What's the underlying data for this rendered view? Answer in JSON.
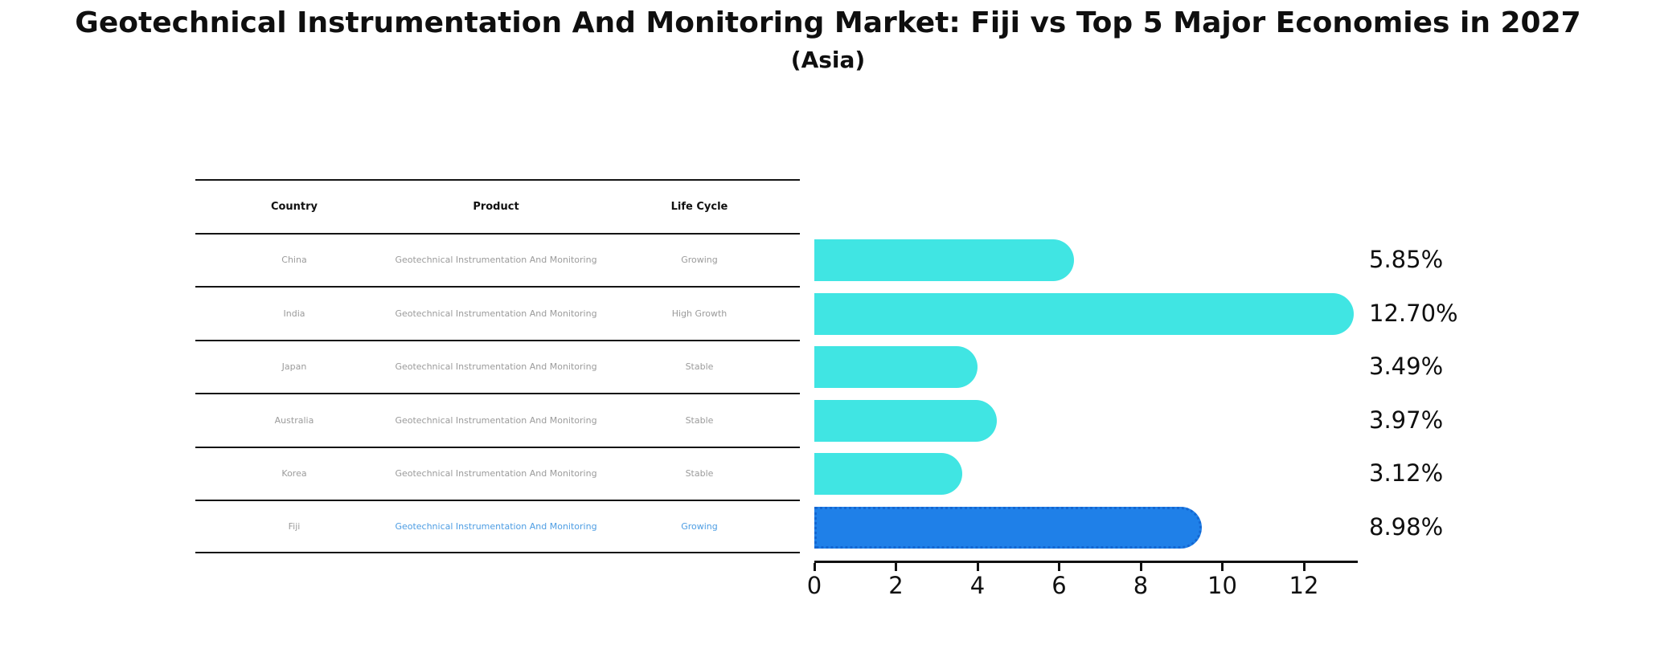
{
  "header": {
    "title": "Geotechnical Instrumentation And Monitoring Market: Fiji vs Top 5 Major Economies in 2027",
    "subtitle": "(Asia)"
  },
  "table": {
    "columns": [
      "Country",
      "Product",
      "Life Cycle"
    ],
    "rows": [
      {
        "country": "China",
        "product": "Geotechnical Instrumentation And Monitoring",
        "life_cycle": "Growing",
        "highlight": false
      },
      {
        "country": "India",
        "product": "Geotechnical Instrumentation And Monitoring",
        "life_cycle": "High Growth",
        "highlight": false
      },
      {
        "country": "Japan",
        "product": "Geotechnical Instrumentation And Monitoring",
        "life_cycle": "Stable",
        "highlight": false
      },
      {
        "country": "Australia",
        "product": "Geotechnical Instrumentation And Monitoring",
        "life_cycle": "Stable",
        "highlight": false
      },
      {
        "country": "Korea",
        "product": "Geotechnical Instrumentation And Monitoring",
        "life_cycle": "Stable",
        "highlight": false
      },
      {
        "country": "Fiji",
        "product": "Geotechnical Instrumentation And Monitoring",
        "life_cycle": "Growing",
        "highlight": true
      }
    ]
  },
  "chart_data": {
    "type": "bar",
    "orientation": "horizontal",
    "title": "Geotechnical Instrumentation And Monitoring Market: Fiji vs Top 5 Major Economies in 2027",
    "subtitle": "(Asia)",
    "categories": [
      "China",
      "India",
      "Japan",
      "Australia",
      "Korea",
      "Fiji"
    ],
    "values": [
      5.85,
      12.7,
      3.49,
      3.97,
      3.12,
      8.98
    ],
    "value_labels": [
      "5.85%",
      "12.70%",
      "3.49%",
      "3.97%",
      "3.12%",
      "8.98%"
    ],
    "highlight_index": 5,
    "xlim": [
      0,
      13.3
    ],
    "x_ticks": [
      0,
      2,
      4,
      6,
      8,
      10,
      12
    ],
    "grid": false,
    "legend": false,
    "bar_colors": {
      "default": "#40e5e3",
      "highlight": "#1f80e8"
    }
  },
  "colors": {
    "background": "#ffffff",
    "text": "#0f0f0f",
    "table_line": "#141414",
    "table_text_muted": "#9b9b9b",
    "highlight_text": "#4d9de3",
    "highlight_border": "#1467d2"
  }
}
